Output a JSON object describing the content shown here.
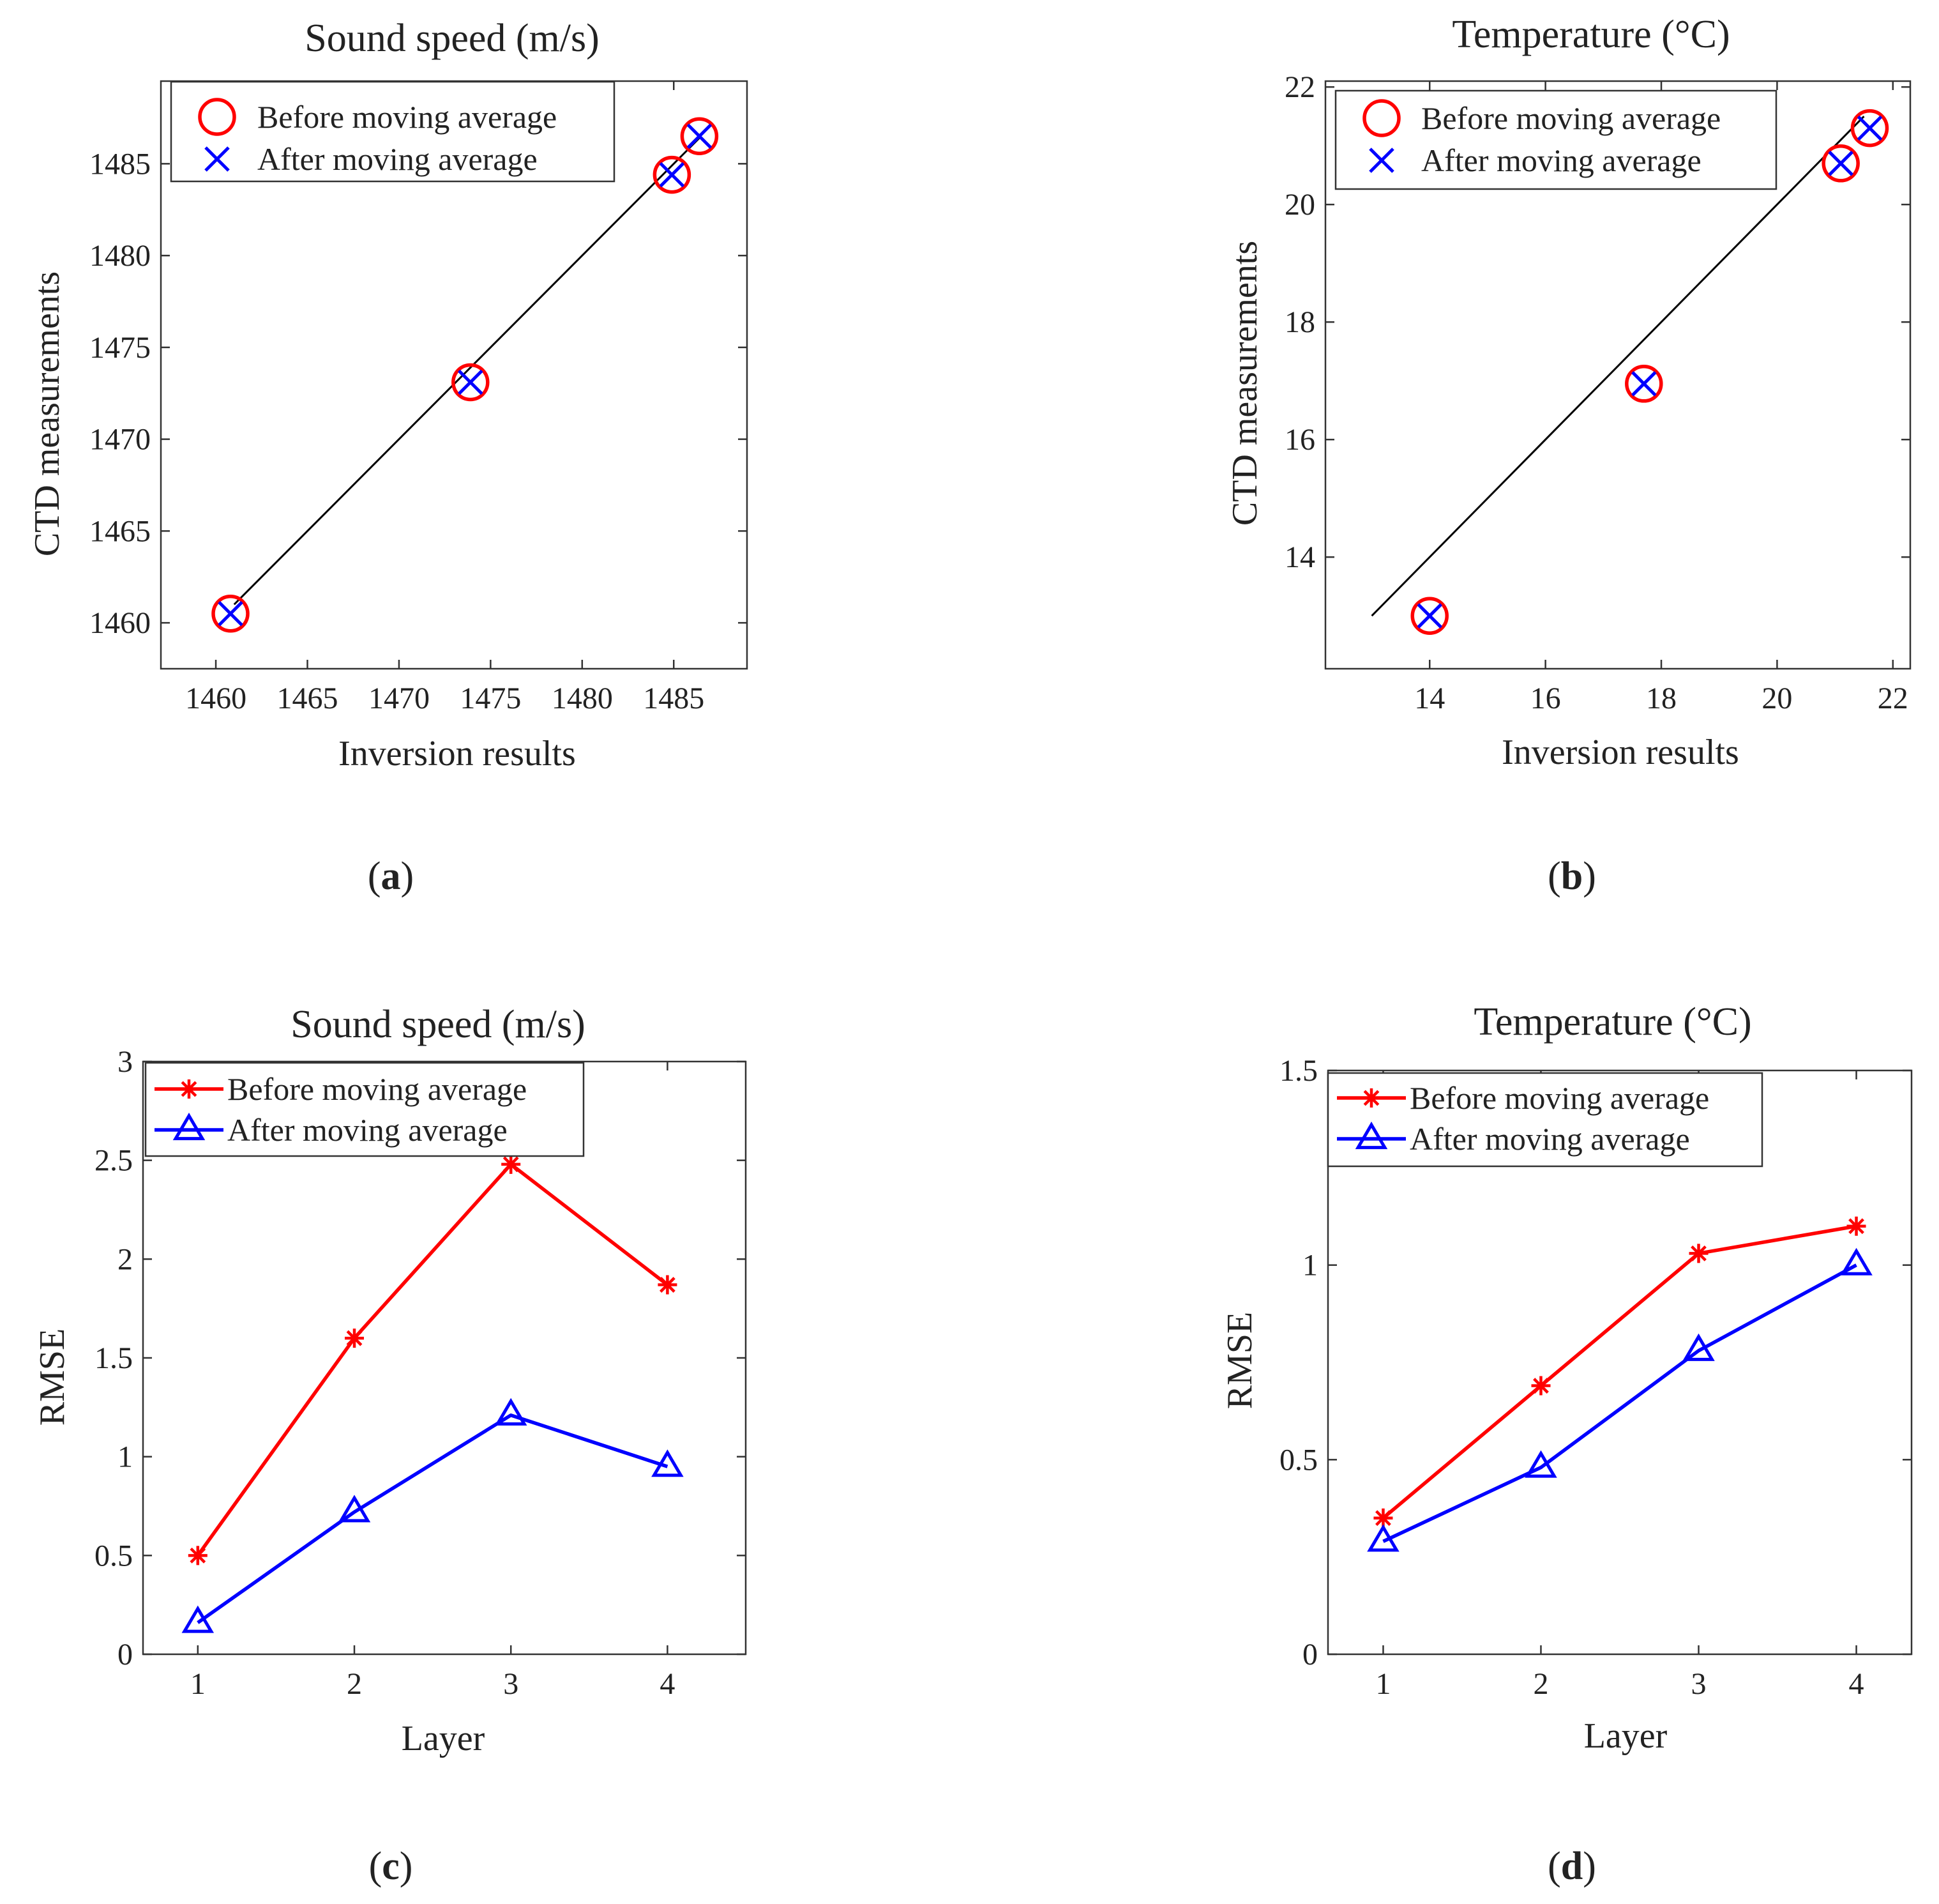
{
  "chart_data": [
    {
      "id": "a",
      "type": "scatter",
      "panel_label": "a",
      "title": "Sound speed (m/s)",
      "xlabel": "Inversion results",
      "ylabel": "CTD measurements",
      "xlim": [
        1457,
        1489
      ],
      "ylim": [
        1457.5,
        1489.5
      ],
      "xticks": [
        1460,
        1465,
        1470,
        1475,
        1480,
        1485
      ],
      "yticks": [
        1460,
        1465,
        1470,
        1475,
        1480,
        1485
      ],
      "grid": false,
      "legend_position": "top-left",
      "reference_line": {
        "x": [
          1461,
          1486.5
        ],
        "y": [
          1461,
          1486.5
        ],
        "color": "#000000"
      },
      "series": [
        {
          "name": "Before moving average",
          "marker": "circle",
          "color": "#ff0000",
          "points": [
            [
              1460.8,
              1460.5
            ],
            [
              1473.9,
              1473.1
            ],
            [
              1484.9,
              1484.4
            ],
            [
              1486.4,
              1486.5
            ]
          ]
        },
        {
          "name": "After moving average",
          "marker": "x",
          "color": "#0000ff",
          "points": [
            [
              1460.8,
              1460.5
            ],
            [
              1473.9,
              1473.1
            ],
            [
              1484.9,
              1484.4
            ],
            [
              1486.4,
              1486.5
            ]
          ]
        }
      ]
    },
    {
      "id": "b",
      "type": "scatter",
      "panel_label": "b",
      "title": "Temperature (°C)",
      "xlabel": "Inversion results",
      "ylabel": "CTD measurements",
      "xlim": [
        12.2,
        22.3
      ],
      "ylim": [
        12.1,
        22.1
      ],
      "xticks": [
        14,
        16,
        18,
        20,
        22
      ],
      "yticks": [
        14,
        16,
        18,
        20,
        22
      ],
      "grid": false,
      "legend_position": "top-left",
      "reference_line": {
        "x": [
          13,
          21.5
        ],
        "y": [
          13,
          21.5
        ],
        "color": "#000000"
      },
      "series": [
        {
          "name": "Before moving average",
          "marker": "circle",
          "color": "#ff0000",
          "points": [
            [
              14.0,
              13.0
            ],
            [
              17.7,
              16.95
            ],
            [
              21.1,
              20.7
            ],
            [
              21.6,
              21.3
            ]
          ]
        },
        {
          "name": "After moving average",
          "marker": "x",
          "color": "#0000ff",
          "points": [
            [
              14.0,
              13.0
            ],
            [
              17.7,
              16.95
            ],
            [
              21.1,
              20.7
            ],
            [
              21.6,
              21.3
            ]
          ]
        }
      ]
    },
    {
      "id": "c",
      "type": "line",
      "panel_label": "c",
      "title": "Sound speed (m/s)",
      "xlabel": "Layer",
      "ylabel": "RMSE",
      "xlim": [
        0.65,
        4.5
      ],
      "ylim": [
        0,
        3
      ],
      "xticks": [
        1,
        2,
        3,
        4
      ],
      "yticks": [
        0,
        0.5,
        1,
        1.5,
        2,
        2.5,
        3
      ],
      "grid": false,
      "legend_position": "top-left",
      "categories": [
        1,
        2,
        3,
        4
      ],
      "series": [
        {
          "name": "Before moving average",
          "marker": "asterisk",
          "color": "#ff0000",
          "values": [
            0.5,
            1.6,
            2.48,
            1.87
          ]
        },
        {
          "name": "After moving average",
          "marker": "triangle",
          "color": "#0000ff",
          "values": [
            0.16,
            0.72,
            1.21,
            0.95
          ]
        }
      ]
    },
    {
      "id": "d",
      "type": "line",
      "panel_label": "d",
      "title": "Temperature (°C)",
      "xlabel": "Layer",
      "ylabel": "RMSE",
      "xlim": [
        0.65,
        4.35
      ],
      "ylim": [
        0,
        1.5
      ],
      "xticks": [
        1,
        2,
        3,
        4
      ],
      "yticks": [
        0,
        0.5,
        1,
        1.5
      ],
      "grid": false,
      "legend_position": "top-left",
      "categories": [
        1,
        2,
        3,
        4
      ],
      "series": [
        {
          "name": "Before moving average",
          "marker": "asterisk",
          "color": "#ff0000",
          "values": [
            0.35,
            0.69,
            1.03,
            1.1
          ]
        },
        {
          "name": "After moving average",
          "marker": "triangle",
          "color": "#0000ff",
          "values": [
            0.29,
            0.48,
            0.78,
            1.0
          ]
        }
      ]
    }
  ]
}
